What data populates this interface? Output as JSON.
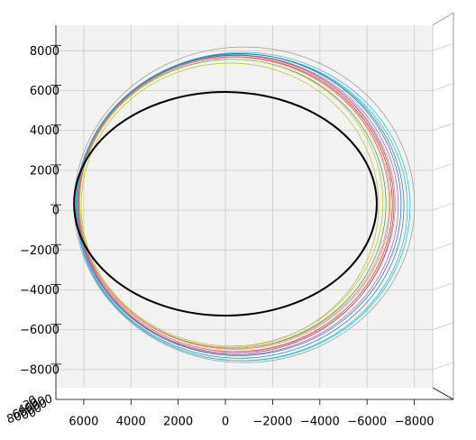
{
  "chart_data": {
    "type": "orbit",
    "xlim": [
      7180,
      -8780
    ],
    "ylim": [
      -8910,
      9280
    ],
    "xticks": [
      6000,
      4000,
      2000,
      0,
      {
        "value": -2000,
        "label": "−2000"
      },
      {
        "value": -4000,
        "label": "−4000"
      },
      {
        "value": -6000,
        "label": "−6000"
      },
      {
        "value": -8000,
        "label": "−8000"
      }
    ],
    "yticks": [
      8000,
      6000,
      4000,
      2000,
      0,
      {
        "value": -2000,
        "label": "−2000"
      },
      {
        "value": -4000,
        "label": "−4000"
      },
      {
        "value": -6000,
        "label": "−6000"
      },
      {
        "value": -8000,
        "label": "−8000"
      }
    ],
    "zticks": [
      8000,
      6000,
      4000,
      2000,
      0
    ],
    "grid": true,
    "series": [
      {
        "color": "#999999",
        "values": [
          -800,
          270,
          7210,
          7920
        ]
      },
      {
        "color": "#17becf",
        "values": [
          -690,
          140,
          7020,
          7690
        ]
      },
      {
        "color": "#1f77b4",
        "values": [
          -560,
          280,
          6880,
          7580
        ]
      },
      {
        "color": "#bcbd22",
        "values": [
          -190,
          250,
          6300,
          7130
        ]
      },
      {
        "color": "#2ca02c",
        "values": [
          -300,
          320,
          6500,
          7250
        ]
      },
      {
        "color": "#d62728",
        "values": [
          -420,
          300,
          6650,
          7400
        ]
      },
      {
        "color": "#e377c2",
        "values": [
          -470,
          330,
          6720,
          7450
        ]
      },
      {
        "color": "#9467bd",
        "values": [
          -520,
          260,
          6800,
          7520
        ]
      },
      {
        "color": "#ff7f0e",
        "values": [
          -380,
          350,
          6600,
          7330
        ]
      },
      {
        "color": "#8c564b",
        "values": [
          -440,
          290,
          6700,
          7480
        ]
      },
      {
        "color": "#1f77b4",
        "values": [
          -610,
          210,
          6950,
          7640
        ]
      },
      {
        "color": "#e377c2",
        "values": [
          -350,
          370,
          6580,
          7300
        ]
      },
      {
        "color": "#bcbd22",
        "values": [
          -250,
          380,
          6420,
          7200
        ]
      },
      {
        "color": "#17becf",
        "values": [
          -740,
          180,
          7080,
          7740
        ]
      },
      {
        "color": "#000000",
        "values": [
          0,
          320,
          6410,
          5610
        ],
        "width": 2
      }
    ]
  }
}
